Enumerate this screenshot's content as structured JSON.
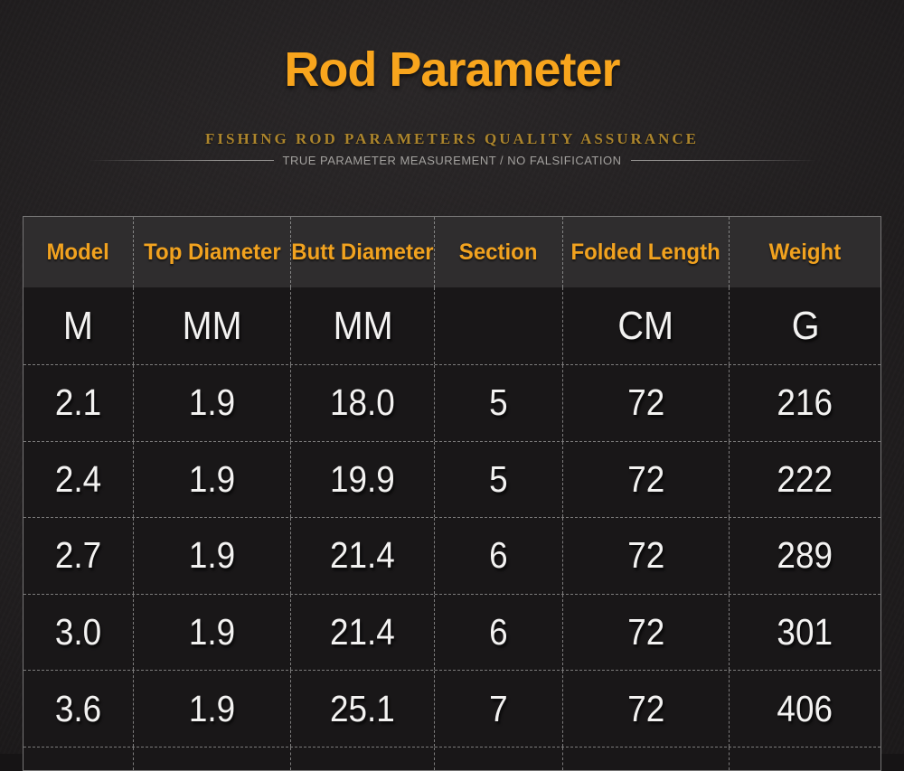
{
  "page": {
    "title": "Rod Parameter",
    "subtitle": "FISHING ROD PARAMETERS QUALITY ASSURANCE",
    "tagline": "TRUE PARAMETER MEASUREMENT / NO FALSIFICATION"
  },
  "colors": {
    "title_orange": "#F8A51D",
    "header_orange": "#F1A21F",
    "subtitle_gold": "#AC852C",
    "tagline_gray": "#A3A19E",
    "header_bg": "#2F2D2E",
    "table_bg": "#191718",
    "page_bg": "#1E1C1D",
    "dashed_border": "#BEBEBE",
    "cell_text": "#F3F2F1"
  },
  "table": {
    "columns": [
      "Model",
      "Top Diameter",
      "Butt Diameter",
      "Section",
      "Folded Length",
      "Weight"
    ],
    "units": [
      "M",
      "MM",
      "MM",
      "",
      "CM",
      "G"
    ],
    "rows": [
      [
        "2.1",
        "1.9",
        "18.0",
        "5",
        "72",
        "216"
      ],
      [
        "2.4",
        "1.9",
        "19.9",
        "5",
        "72",
        "222"
      ],
      [
        "2.7",
        "1.9",
        "21.4",
        "6",
        "72",
        "289"
      ],
      [
        "3.0",
        "1.9",
        "21.4",
        "6",
        "72",
        "301"
      ],
      [
        "3.6",
        "1.9",
        "25.1",
        "7",
        "72",
        "406"
      ]
    ]
  }
}
